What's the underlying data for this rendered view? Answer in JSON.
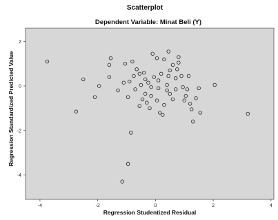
{
  "chart_data": {
    "type": "scatter",
    "title": "Scatterplot",
    "subtitle": "Dependent Variable: Minat Beli (Y)",
    "xlabel": "Regression Studentized Residual",
    "ylabel": "Regression Standardized Predicted Value",
    "xlim": [
      -4.5,
      4.1
    ],
    "ylim": [
      -5.1,
      2.6
    ],
    "xticks": [
      -4,
      -2,
      0,
      2,
      4
    ],
    "yticks": [
      -4,
      -2,
      0,
      2
    ],
    "grid": false,
    "colors": {
      "plot_bg": "#d7d7d7",
      "marker": "#333333"
    },
    "points": [
      {
        "x": -3.75,
        "y": 1.1
      },
      {
        "x": -2.5,
        "y": 0.3
      },
      {
        "x": -2.1,
        "y": -0.5
      },
      {
        "x": -1.95,
        "y": 0.0
      },
      {
        "x": -2.75,
        "y": -1.15
      },
      {
        "x": -1.55,
        "y": 1.25
      },
      {
        "x": -1.6,
        "y": 0.95
      },
      {
        "x": -1.6,
        "y": 0.4
      },
      {
        "x": -1.3,
        "y": -0.2
      },
      {
        "x": -1.1,
        "y": 0.15
      },
      {
        "x": -1.05,
        "y": 1.0
      },
      {
        "x": -0.8,
        "y": 1.1
      },
      {
        "x": -0.9,
        "y": 0.2
      },
      {
        "x": -0.75,
        "y": 0.45
      },
      {
        "x": -0.65,
        "y": 0.75
      },
      {
        "x": -0.55,
        "y": 0.55
      },
      {
        "x": -0.95,
        "y": -0.5
      },
      {
        "x": -0.7,
        "y": -0.15
      },
      {
        "x": -0.5,
        "y": 0.05
      },
      {
        "x": -0.45,
        "y": -0.6
      },
      {
        "x": -0.35,
        "y": -0.35
      },
      {
        "x": -0.35,
        "y": 0.3
      },
      {
        "x": -0.25,
        "y": 0.15
      },
      {
        "x": -0.15,
        "y": -0.05
      },
      {
        "x": -0.05,
        "y": 0.4
      },
      {
        "x": -0.1,
        "y": 1.45
      },
      {
        "x": 0.05,
        "y": 1.25
      },
      {
        "x": 0.1,
        "y": 0.25
      },
      {
        "x": 0.1,
        "y": -0.1
      },
      {
        "x": -0.15,
        "y": -0.45
      },
      {
        "x": -0.3,
        "y": -0.75
      },
      {
        "x": -0.55,
        "y": -0.9
      },
      {
        "x": -0.2,
        "y": -1.0
      },
      {
        "x": 0.05,
        "y": -0.65
      },
      {
        "x": 0.15,
        "y": -1.2
      },
      {
        "x": 0.25,
        "y": -1.3
      },
      {
        "x": 0.3,
        "y": -0.85
      },
      {
        "x": 0.4,
        "y": -0.2
      },
      {
        "x": 0.4,
        "y": 0.05
      },
      {
        "x": 0.5,
        "y": -0.35
      },
      {
        "x": 0.45,
        "y": 0.45
      },
      {
        "x": 0.3,
        "y": 1.2
      },
      {
        "x": 0.45,
        "y": 1.55
      },
      {
        "x": 0.5,
        "y": 0.7
      },
      {
        "x": 0.6,
        "y": -0.6
      },
      {
        "x": 0.7,
        "y": -0.15
      },
      {
        "x": 0.7,
        "y": 0.35
      },
      {
        "x": 0.75,
        "y": 0.75
      },
      {
        "x": 0.8,
        "y": 1.3
      },
      {
        "x": 0.8,
        "y": 1.05
      },
      {
        "x": 0.9,
        "y": 0.45
      },
      {
        "x": 0.95,
        "y": -0.05
      },
      {
        "x": 1.05,
        "y": -0.45
      },
      {
        "x": 1.1,
        "y": -0.15
      },
      {
        "x": 1.15,
        "y": 0.45
      },
      {
        "x": 1.2,
        "y": -0.8
      },
      {
        "x": 1.25,
        "y": -1.05
      },
      {
        "x": 1.3,
        "y": -1.6
      },
      {
        "x": 1.4,
        "y": -0.55
      },
      {
        "x": 1.5,
        "y": -0.1
      },
      {
        "x": 1.55,
        "y": -1.2
      },
      {
        "x": 2.05,
        "y": 0.05
      },
      {
        "x": 3.2,
        "y": -1.25
      },
      {
        "x": -0.85,
        "y": -2.1
      },
      {
        "x": -0.95,
        "y": -3.5
      },
      {
        "x": -1.15,
        "y": -4.3
      },
      {
        "x": 0.6,
        "y": 0.95
      },
      {
        "x": -0.4,
        "y": 0.6
      },
      {
        "x": 0.2,
        "y": 0.55
      },
      {
        "x": 1.0,
        "y": -0.65
      }
    ]
  }
}
